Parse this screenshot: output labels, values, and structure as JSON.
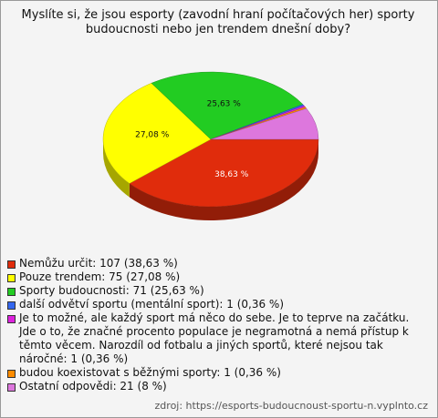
{
  "chart_data": {
    "type": "pie3d",
    "title": [
      "Myslíte si, že jsou esporty (zavodní hraní počítačových her) sporty",
      "budoucnosti nebo jen trendem dnešní doby?"
    ],
    "categories": [
      "Nemůžu určit",
      "Pouze trendem",
      "Sporty budoucnosti",
      "další odvětví sportu (mentální sport)",
      "Je to možné, ale každý sport má něco do sebe.",
      "budou koexistovat s běžnými sporty",
      "Ostatní odpovědi"
    ],
    "values": [
      107,
      75,
      71,
      1,
      1,
      1,
      21
    ],
    "value_labels": [
      "38,63 %",
      "27,08 %",
      "25,63 %",
      null,
      null,
      null,
      null
    ],
    "colors": [
      "#e02c0c",
      "#ffff00",
      "#22cc22",
      "#3366ee",
      "#dd22dd",
      "#ff8c00",
      "#dd77dd"
    ],
    "legend": [
      "Nemůžu určit: 107 (38,63 %)",
      "Pouze trendem: 75 (27,08 %)",
      "Sporty budoucnosti: 71 (25,63 %)",
      "další odvětví sportu (mentální sport): 1 (0,36 %)",
      "Je to možné, ale každý sport má něco do sebe. Je to teprve na začátku. Jde o to, že značné procento populace je negramotná a nemá přístup k těmto věcem. Narozdíl od fotbalu a jiných sportů, které nejsou tak náročné: 1 (0,36 %)",
      "budou koexistovat s běžnými sporty: 1 (0,36 %)",
      "Ostatní odpovědi: 21 (8 %)"
    ],
    "source": "zdroj: https://esports-budoucnoust-sportu-n.vyplnto.cz"
  }
}
